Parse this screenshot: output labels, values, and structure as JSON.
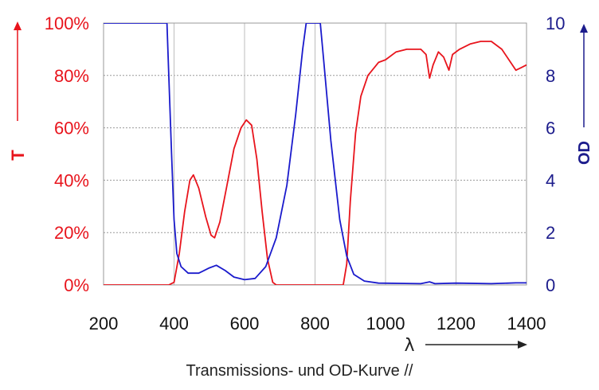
{
  "chart_data": {
    "type": "line",
    "caption": "Transmissions- und OD-Kurve //",
    "xlabel": "λ",
    "xlim": [
      200,
      1400
    ],
    "x_ticks": [
      "200",
      "400",
      "600",
      "800",
      "1000",
      "1200",
      "1400"
    ],
    "grid": true,
    "left_axis": {
      "label": "T",
      "color": "#e8141c",
      "ylim": [
        0,
        100
      ],
      "ticks": [
        "0%",
        "20%",
        "40%",
        "60%",
        "80%",
        "100%"
      ]
    },
    "right_axis": {
      "label": "OD",
      "color": "#1c1c8c",
      "ylim": [
        0,
        10
      ],
      "ticks": [
        "0",
        "2",
        "4",
        "6",
        "8",
        "10"
      ]
    },
    "series": [
      {
        "axis": "left",
        "color": "#e8141c",
        "points": [
          [
            200,
            0
          ],
          [
            385,
            0
          ],
          [
            400,
            1
          ],
          [
            415,
            12
          ],
          [
            430,
            28
          ],
          [
            445,
            40
          ],
          [
            455,
            42
          ],
          [
            470,
            37
          ],
          [
            490,
            26
          ],
          [
            505,
            19
          ],
          [
            515,
            18
          ],
          [
            530,
            24
          ],
          [
            550,
            38
          ],
          [
            570,
            52
          ],
          [
            590,
            60
          ],
          [
            605,
            63
          ],
          [
            620,
            61
          ],
          [
            635,
            48
          ],
          [
            650,
            28
          ],
          [
            665,
            10
          ],
          [
            680,
            1
          ],
          [
            690,
            0
          ],
          [
            880,
            0
          ],
          [
            890,
            8
          ],
          [
            900,
            32
          ],
          [
            915,
            58
          ],
          [
            930,
            72
          ],
          [
            950,
            80
          ],
          [
            980,
            85
          ],
          [
            1000,
            86
          ],
          [
            1030,
            89
          ],
          [
            1060,
            90
          ],
          [
            1100,
            90
          ],
          [
            1115,
            88
          ],
          [
            1125,
            79
          ],
          [
            1135,
            84
          ],
          [
            1150,
            89
          ],
          [
            1165,
            87
          ],
          [
            1180,
            82
          ],
          [
            1190,
            88
          ],
          [
            1210,
            90
          ],
          [
            1240,
            92
          ],
          [
            1270,
            93
          ],
          [
            1300,
            93
          ],
          [
            1330,
            90
          ],
          [
            1350,
            86
          ],
          [
            1370,
            82
          ],
          [
            1385,
            83
          ],
          [
            1400,
            84
          ]
        ]
      },
      {
        "axis": "right",
        "color": "#1a1acc",
        "points": [
          [
            200,
            10
          ],
          [
            375,
            10
          ],
          [
            380,
            10
          ],
          [
            385,
            8
          ],
          [
            393,
            5
          ],
          [
            400,
            2.5
          ],
          [
            408,
            1.2
          ],
          [
            420,
            0.7
          ],
          [
            440,
            0.45
          ],
          [
            470,
            0.45
          ],
          [
            500,
            0.65
          ],
          [
            520,
            0.75
          ],
          [
            545,
            0.55
          ],
          [
            570,
            0.3
          ],
          [
            600,
            0.2
          ],
          [
            630,
            0.25
          ],
          [
            660,
            0.7
          ],
          [
            690,
            1.8
          ],
          [
            720,
            3.8
          ],
          [
            745,
            6.5
          ],
          [
            765,
            9
          ],
          [
            775,
            10
          ],
          [
            815,
            10
          ],
          [
            825,
            8.5
          ],
          [
            845,
            5.5
          ],
          [
            870,
            2.5
          ],
          [
            890,
            1.1
          ],
          [
            910,
            0.4
          ],
          [
            940,
            0.15
          ],
          [
            980,
            0.07
          ],
          [
            1100,
            0.05
          ],
          [
            1125,
            0.12
          ],
          [
            1140,
            0.05
          ],
          [
            1200,
            0.07
          ],
          [
            1300,
            0.05
          ],
          [
            1370,
            0.08
          ],
          [
            1400,
            0.08
          ]
        ]
      }
    ]
  }
}
